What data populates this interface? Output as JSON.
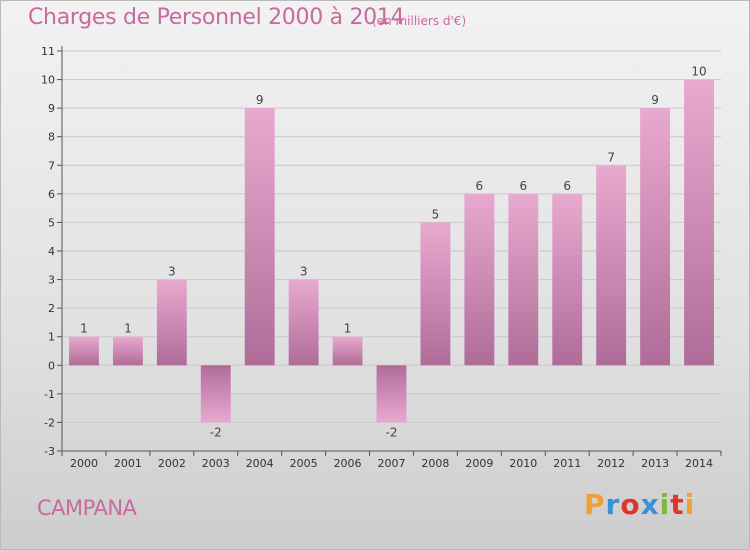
{
  "header": {
    "title": "Charges de Personnel 2000 à 2014",
    "subtitle": "(en milliers d'€)"
  },
  "footer": {
    "commune": "CAMPANA",
    "logo_text": "Proxiti",
    "logo_colors": [
      "#f0a033",
      "#3b8fd6",
      "#e0352b",
      "#3b8fd6",
      "#7cba3b",
      "#e0352b",
      "#f0a033"
    ]
  },
  "colors": {
    "bar_top": "#e8a9d0",
    "bar_bottom": "#b06c98",
    "grid": "#c8c8c8",
    "text_accent": "#c96a9e"
  },
  "chart_data": {
    "type": "bar",
    "title": "Charges de Personnel 2000 à 2014",
    "subtitle": "(en milliers d'€)",
    "categories": [
      "2000",
      "2001",
      "2002",
      "2003",
      "2004",
      "2005",
      "2006",
      "2007",
      "2008",
      "2009",
      "2010",
      "2011",
      "2012",
      "2013",
      "2014"
    ],
    "values": [
      1,
      1,
      3,
      -2,
      9,
      3,
      1,
      -2,
      5,
      6,
      6,
      6,
      7,
      9,
      10
    ],
    "ylim": [
      -3,
      11
    ],
    "yticks": [
      -3,
      -2,
      -1,
      0,
      1,
      2,
      3,
      4,
      5,
      6,
      7,
      8,
      9,
      10,
      11
    ],
    "grid": true
  }
}
